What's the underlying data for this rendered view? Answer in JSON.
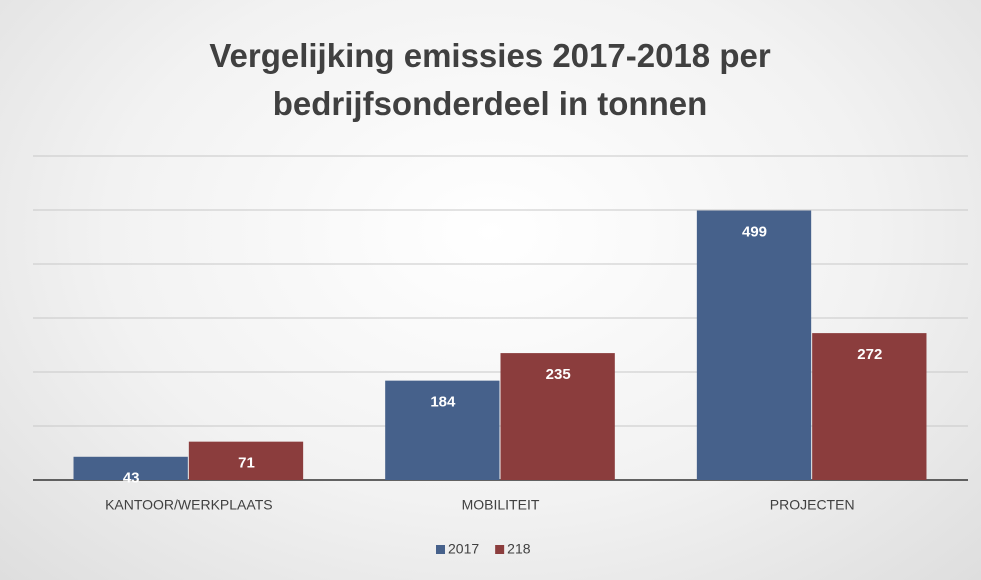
{
  "chart_data": {
    "type": "bar",
    "title": "Vergelijking emissies 2017-2018 per bedrijfsonderdeel in tonnen",
    "categories": [
      "KANTOOR/WERKPLAATS",
      "MOBILITEIT",
      "PROJECTEN"
    ],
    "series": [
      {
        "name": "2017",
        "color": "#46618b",
        "values": [
          43,
          184,
          499
        ]
      },
      {
        "name": "218",
        "color": "#8b3d3d",
        "values": [
          71,
          235,
          272
        ]
      }
    ],
    "ylim": [
      0,
      600
    ],
    "yticks": [
      0,
      100,
      200,
      300,
      400,
      500,
      600
    ],
    "grid": true,
    "legend": "bottom"
  }
}
